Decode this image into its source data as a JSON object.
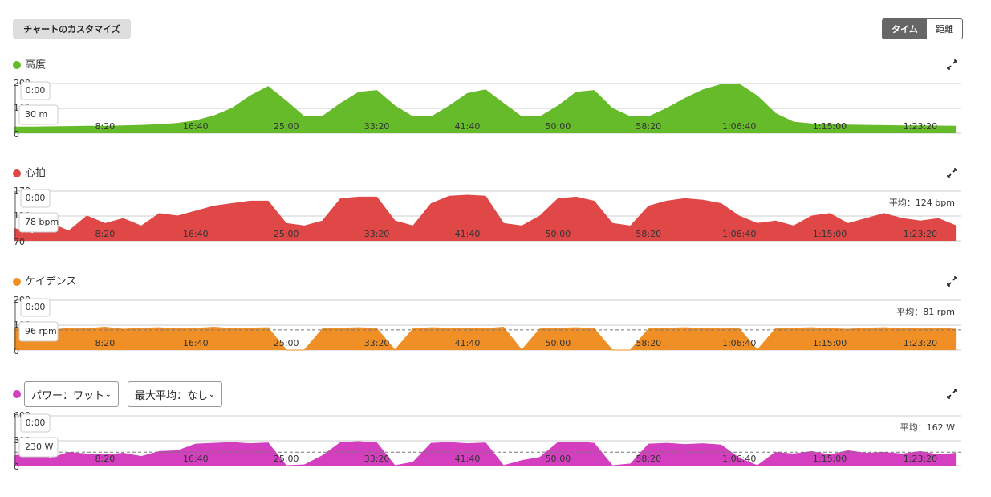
{
  "header": {
    "customize_button": "チャートのカスタマイズ",
    "toggle": [
      "タイム",
      "距離"
    ]
  },
  "chart_data": [
    {
      "type": "area",
      "title": "高度",
      "color": "#66bb2a",
      "x": [
        0,
        100,
        200,
        300,
        400,
        500,
        600,
        700,
        800,
        900,
        1000,
        1100,
        1200,
        1300,
        1400,
        1500,
        1600,
        1700,
        1800,
        1900,
        2000,
        2100,
        2200,
        2300,
        2400,
        2500,
        2600,
        2700,
        2800,
        2900,
        3000,
        3100,
        3200,
        3300,
        3400,
        3500,
        3600,
        3700,
        3800,
        3900,
        4000,
        4100,
        4200,
        4300,
        4400,
        4500,
        4600,
        4700,
        4800,
        4900,
        5000,
        5100,
        5200
      ],
      "values": [
        25,
        25,
        26,
        27,
        28,
        28,
        30,
        32,
        35,
        40,
        50,
        70,
        100,
        150,
        188,
        130,
        66,
        68,
        120,
        165,
        172,
        110,
        66,
        66,
        110,
        160,
        175,
        120,
        66,
        66,
        110,
        165,
        172,
        100,
        66,
        66,
        100,
        140,
        175,
        196,
        198,
        150,
        80,
        45,
        38,
        35,
        33,
        32,
        31,
        30,
        30,
        29,
        28
      ],
      "xlim": [
        0,
        5226
      ],
      "xticks": [
        {
          "value": 500,
          "label": "8:20"
        },
        {
          "value": 1000,
          "label": "16:40"
        },
        {
          "value": 1500,
          "label": "25:00"
        },
        {
          "value": 2000,
          "label": "33:20"
        },
        {
          "value": 2500,
          "label": "41:40"
        },
        {
          "value": 3000,
          "label": "50:00"
        },
        {
          "value": 3500,
          "label": "58:20"
        },
        {
          "value": 4000,
          "label": "1:06:40"
        },
        {
          "value": 4500,
          "label": "1:15:00"
        },
        {
          "value": 5000,
          "label": "1:23:20"
        }
      ],
      "ylim": [
        0,
        200
      ],
      "yticks": [
        0,
        100,
        200
      ],
      "grid": true,
      "tooltip": {
        "time": "0:00",
        "value": "30 m"
      }
    },
    {
      "type": "area",
      "title": "心拍",
      "color": "#e04848",
      "x": [
        0,
        100,
        200,
        300,
        400,
        500,
        600,
        700,
        800,
        900,
        1000,
        1100,
        1200,
        1300,
        1400,
        1500,
        1600,
        1700,
        1800,
        1900,
        2000,
        2100,
        2200,
        2300,
        2400,
        2500,
        2600,
        2700,
        2800,
        2900,
        3000,
        3100,
        3200,
        3300,
        3400,
        3500,
        3600,
        3700,
        3800,
        3900,
        4000,
        4100,
        4200,
        4300,
        4400,
        4500,
        4600,
        4700,
        4800,
        4900,
        5000,
        5100,
        5200
      ],
      "values": [
        95,
        85,
        105,
        90,
        120,
        105,
        115,
        100,
        125,
        120,
        130,
        140,
        145,
        150,
        150,
        105,
        100,
        110,
        155,
        158,
        158,
        110,
        100,
        145,
        160,
        162,
        160,
        105,
        100,
        120,
        155,
        158,
        150,
        105,
        100,
        140,
        150,
        155,
        152,
        145,
        120,
        105,
        110,
        100,
        120,
        125,
        105,
        115,
        125,
        115,
        110,
        115,
        100
      ],
      "xlim": [
        0,
        5226
      ],
      "xticks": [
        {
          "value": 500,
          "label": "8:20"
        },
        {
          "value": 1000,
          "label": "16:40"
        },
        {
          "value": 1500,
          "label": "25:00"
        },
        {
          "value": 2000,
          "label": "33:20"
        },
        {
          "value": 2500,
          "label": "41:40"
        },
        {
          "value": 3000,
          "label": "50:00"
        },
        {
          "value": 3500,
          "label": "58:20"
        },
        {
          "value": 4000,
          "label": "1:06:40"
        },
        {
          "value": 4500,
          "label": "1:15:00"
        },
        {
          "value": 5000,
          "label": "1:23:20"
        }
      ],
      "ylim": [
        70,
        170
      ],
      "yticks": [
        70,
        120,
        170
      ],
      "grid": true,
      "average": 124,
      "average_label": "平均：124 bpm",
      "tooltip": {
        "time": "0:00",
        "value": "78 bpm"
      }
    },
    {
      "type": "area",
      "title": "ケイデンス",
      "color": "#ef8f25",
      "x": [
        0,
        100,
        200,
        300,
        400,
        500,
        600,
        700,
        800,
        900,
        1000,
        1100,
        1200,
        1300,
        1400,
        1500,
        1600,
        1700,
        1800,
        1900,
        2000,
        2100,
        2200,
        2300,
        2400,
        2500,
        2600,
        2700,
        2800,
        2900,
        3000,
        3100,
        3200,
        3300,
        3400,
        3500,
        3600,
        3700,
        3800,
        3900,
        4000,
        4100,
        4200,
        4300,
        4400,
        4500,
        4600,
        4700,
        4800,
        4900,
        5000,
        5100,
        5200
      ],
      "values": [
        85,
        90,
        80,
        88,
        86,
        92,
        84,
        88,
        90,
        85,
        87,
        92,
        86,
        88,
        90,
        0,
        0,
        85,
        88,
        90,
        86,
        0,
        85,
        90,
        88,
        87,
        86,
        92,
        0,
        85,
        88,
        90,
        86,
        0,
        0,
        85,
        88,
        90,
        87,
        85,
        86,
        0,
        85,
        88,
        90,
        86,
        84,
        88,
        90,
        86,
        85,
        88,
        84
      ],
      "xlim": [
        0,
        5226
      ],
      "xticks": [
        {
          "value": 500,
          "label": "8:20"
        },
        {
          "value": 1000,
          "label": "16:40"
        },
        {
          "value": 1500,
          "label": "25:00"
        },
        {
          "value": 2000,
          "label": "33:20"
        },
        {
          "value": 2500,
          "label": "41:40"
        },
        {
          "value": 3000,
          "label": "50:00"
        },
        {
          "value": 3500,
          "label": "58:20"
        },
        {
          "value": 4000,
          "label": "1:06:40"
        },
        {
          "value": 4500,
          "label": "1:15:00"
        },
        {
          "value": 5000,
          "label": "1:23:20"
        }
      ],
      "ylim": [
        0,
        200
      ],
      "yticks": [
        0,
        100,
        200
      ],
      "grid": true,
      "average": 81,
      "average_label": "平均：81 rpm",
      "tooltip": {
        "time": "0:00",
        "value": "96 rpm"
      }
    },
    {
      "type": "area",
      "selectors": [
        "パワー：ワット",
        "最大平均：なし"
      ],
      "color": "#d43fbf",
      "x": [
        0,
        100,
        200,
        300,
        400,
        500,
        600,
        700,
        800,
        900,
        1000,
        1100,
        1200,
        1300,
        1400,
        1500,
        1600,
        1700,
        1800,
        1900,
        2000,
        2100,
        2200,
        2300,
        2400,
        2500,
        2600,
        2700,
        2800,
        2900,
        3000,
        3100,
        3200,
        3300,
        3400,
        3500,
        3600,
        3700,
        3800,
        3900,
        4000,
        4100,
        4200,
        4300,
        4400,
        4500,
        4600,
        4700,
        4800,
        4900,
        5000,
        5100,
        5200
      ],
      "values": [
        120,
        150,
        90,
        160,
        140,
        130,
        150,
        110,
        170,
        180,
        260,
        270,
        280,
        265,
        275,
        0,
        10,
        120,
        280,
        290,
        275,
        0,
        40,
        270,
        280,
        265,
        275,
        0,
        60,
        100,
        280,
        285,
        270,
        0,
        20,
        260,
        270,
        255,
        265,
        250,
        90,
        0,
        160,
        140,
        170,
        130,
        180,
        150,
        160,
        140,
        170,
        130,
        150
      ],
      "xlim": [
        0,
        5226
      ],
      "xticks": [
        {
          "value": 500,
          "label": "8:20"
        },
        {
          "value": 1000,
          "label": "16:40"
        },
        {
          "value": 1500,
          "label": "25:00"
        },
        {
          "value": 2000,
          "label": "33:20"
        },
        {
          "value": 2500,
          "label": "41:40"
        },
        {
          "value": 3000,
          "label": "50:00"
        },
        {
          "value": 3500,
          "label": "58:20"
        },
        {
          "value": 4000,
          "label": "1:06:40"
        },
        {
          "value": 4500,
          "label": "1:15:00"
        },
        {
          "value": 5000,
          "label": "1:23:20"
        }
      ],
      "ylim": [
        0,
        600
      ],
      "yticks": [
        0,
        300,
        600
      ],
      "grid": true,
      "average": 162,
      "average_label": "平均：162 W",
      "tooltip": {
        "time": "0:00",
        "value": "230 W"
      }
    }
  ]
}
